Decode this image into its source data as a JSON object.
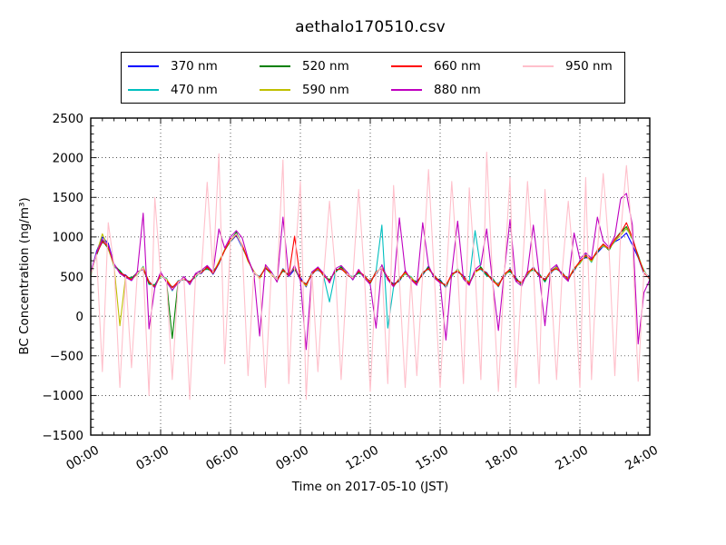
{
  "chart_data": {
    "type": "line",
    "title": "aethalo170510.csv",
    "xlabel": "Time on 2017-05-10 (JST)",
    "ylabel": "BC Concentration (ng/m³)",
    "xlim": [
      0,
      24
    ],
    "ylim": [
      -1500,
      2500
    ],
    "grid": "dotted",
    "legend": {
      "position": "top",
      "columns": 4
    },
    "xticks": {
      "values": [
        0,
        3,
        6,
        9,
        12,
        15,
        18,
        21,
        24
      ],
      "labels": [
        "00:00",
        "03:00",
        "06:00",
        "09:00",
        "12:00",
        "15:00",
        "18:00",
        "21:00",
        "24:00"
      ]
    },
    "yticks": {
      "values": [
        -1500,
        -1000,
        -500,
        0,
        500,
        1000,
        1500,
        2000,
        2500
      ],
      "labels": [
        "−1500",
        "−1000",
        "−500",
        "0",
        "500",
        "1000",
        "1500",
        "2000",
        "2500"
      ]
    },
    "minor_x_step": 0.5,
    "minor_y_step": 100,
    "x_start": 0,
    "x_step": 0.25,
    "series": [
      {
        "name": "370 nm",
        "color": "#0000ff",
        "values": [
          540,
          820,
          1000,
          920,
          660,
          540,
          520,
          450,
          560,
          590,
          440,
          360,
          540,
          440,
          370,
          410,
          500,
          400,
          530,
          540,
          630,
          530,
          660,
          840,
          940,
          1020,
          870,
          720,
          540,
          500,
          600,
          560,
          440,
          600,
          500,
          590,
          490,
          370,
          560,
          580,
          540,
          430,
          590,
          590,
          560,
          460,
          580,
          480,
          450,
          530,
          640,
          460,
          410,
          440,
          570,
          460,
          440,
          520,
          630,
          480,
          460,
          360,
          540,
          560,
          510,
          400,
          580,
          590,
          550,
          440,
          410,
          500,
          600,
          450,
          430,
          520,
          620,
          500,
          470,
          540,
          630,
          510,
          490,
          570,
          700,
          740,
          720,
          800,
          880,
          860,
          940,
          980,
          1050,
          900,
          740,
          540,
          500
        ]
      },
      {
        "name": "470 nm",
        "color": "#00bfbf",
        "values": [
          500,
          800,
          930,
          890,
          620,
          580,
          480,
          490,
          520,
          630,
          400,
          400,
          500,
          480,
          320,
          450,
          460,
          440,
          490,
          580,
          590,
          570,
          660,
          840,
          940,
          1060,
          870,
          720,
          540,
          500,
          600,
          560,
          440,
          600,
          500,
          630,
          450,
          410,
          520,
          620,
          500,
          180,
          550,
          630,
          520,
          500,
          540,
          520,
          410,
          570,
          1150,
          -150,
          370,
          480,
          530,
          500,
          400,
          560,
          590,
          520,
          420,
          400,
          500,
          600,
          470,
          440,
          1080,
          590,
          510,
          480,
          370,
          540,
          560,
          490,
          390,
          560,
          580,
          540,
          430,
          580,
          590,
          550,
          450,
          610,
          660,
          780,
          680,
          840,
          880,
          860,
          940,
          1060,
          1100,
          1000,
          740,
          580,
          460
        ]
      },
      {
        "name": "520 nm",
        "color": "#008000",
        "values": [
          530,
          770,
          960,
          850,
          650,
          570,
          490,
          480,
          550,
          600,
          410,
          390,
          530,
          450,
          -280,
          440,
          470,
          430,
          500,
          570,
          600,
          560,
          670,
          830,
          950,
          1060,
          880,
          710,
          550,
          490,
          610,
          530,
          470,
          570,
          530,
          600,
          460,
          400,
          530,
          610,
          510,
          460,
          560,
          620,
          530,
          490,
          550,
          510,
          420,
          560,
          610,
          470,
          400,
          450,
          560,
          470,
          430,
          530,
          620,
          490,
          450,
          370,
          530,
          570,
          500,
          410,
          550,
          620,
          520,
          470,
          380,
          530,
          570,
          480,
          400,
          550,
          590,
          530,
          440,
          570,
          620,
          520,
          480,
          580,
          690,
          750,
          710,
          810,
          910,
          830,
          970,
          1060,
          1130,
          970,
          770,
          550,
          490
        ]
      },
      {
        "name": "590 nm",
        "color": "#bfbf00",
        "values": [
          510,
          790,
          1040,
          860,
          630,
          -120,
          510,
          460,
          530,
          620,
          430,
          370,
          510,
          470,
          360,
          420,
          490,
          410,
          520,
          550,
          620,
          540,
          690,
          840,
          950,
          1030,
          900,
          690,
          570,
          470,
          630,
          530,
          450,
          590,
          510,
          620,
          460,
          380,
          550,
          590,
          530,
          440,
          580,
          600,
          550,
          470,
          570,
          490,
          440,
          540,
          630,
          470,
          380,
          470,
          540,
          490,
          410,
          550,
          600,
          510,
          430,
          390,
          510,
          590,
          480,
          430,
          550,
          600,
          540,
          450,
          400,
          510,
          590,
          460,
          420,
          530,
          610,
          510,
          460,
          550,
          620,
          520,
          480,
          600,
          670,
          770,
          690,
          830,
          890,
          850,
          950,
          1020,
          1110,
          990,
          750,
          570,
          470
        ]
      },
      {
        "name": "660 nm",
        "color": "#ff0000",
        "values": [
          530,
          790,
          940,
          880,
          650,
          550,
          510,
          460,
          550,
          600,
          430,
          370,
          530,
          450,
          360,
          440,
          470,
          430,
          520,
          550,
          620,
          540,
          670,
          830,
          970,
          1030,
          900,
          710,
          550,
          490,
          610,
          550,
          450,
          590,
          510,
          1010,
          460,
          400,
          530,
          610,
          510,
          440,
          580,
          600,
          530,
          470,
          570,
          510,
          420,
          560,
          610,
          490,
          380,
          470,
          560,
          470,
          410,
          550,
          600,
          510,
          430,
          390,
          530,
          570,
          500,
          410,
          570,
          600,
          540,
          450,
          380,
          530,
          590,
          460,
          420,
          550,
          610,
          510,
          460,
          570,
          600,
          540,
          460,
          600,
          690,
          770,
          710,
          830,
          910,
          850,
          970,
          1050,
          1180,
          990,
          750,
          550,
          470
        ]
      },
      {
        "name": "880 nm",
        "color": "#bf00bf",
        "values": [
          550,
          800,
          970,
          900,
          660,
          540,
          490,
          450,
          560,
          1300,
          -160,
          360,
          560,
          430,
          330,
          420,
          500,
          400,
          540,
          580,
          640,
          560,
          1100,
          860,
          1000,
          1080,
          990,
          730,
          540,
          -250,
          650,
          560,
          430,
          1250,
          500,
          640,
          450,
          -420,
          560,
          620,
          540,
          420,
          600,
          640,
          560,
          460,
          590,
          480,
          400,
          -150,
          650,
          460,
          370,
          1240,
          580,
          460,
          390,
          1180,
          640,
          480,
          420,
          -300,
          550,
          1200,
          470,
          390,
          590,
          650,
          1100,
          430,
          -180,
          550,
          1220,
          440,
          380,
          570,
          1150,
          540,
          -120,
          590,
          650,
          510,
          440,
          1050,
          720,
          800,
          730,
          1250,
          950,
          870,
          1010,
          1480,
          1550,
          1150,
          -350,
          300,
          460
        ]
      },
      {
        "name": "950 nm",
        "color": "#ffc0cb",
        "values": [
          520,
          780,
          -700,
          1180,
          640,
          -900,
          500,
          -650,
          540,
          610,
          -1000,
          1500,
          520,
          460,
          -800,
          430,
          480,
          -1050,
          510,
          560,
          1690,
          550,
          2050,
          -600,
          960,
          1040,
          890,
          -750,
          560,
          480,
          -900,
          540,
          460,
          1970,
          -850,
          610,
          1700,
          -1050,
          540,
          -700,
          520,
          1450,
          570,
          -800,
          540,
          480,
          1600,
          500,
          -950,
          550,
          620,
          -850,
          1650,
          460,
          -900,
          480,
          -750,
          540,
          1850,
          500,
          -900,
          380,
          1700,
          580,
          -850,
          1620,
          560,
          -800,
          2070,
          460,
          -950,
          520,
          1750,
          -900,
          410,
          1700,
          600,
          -850,
          1600,
          450,
          -800,
          610,
          1450,
          590,
          -900,
          1750,
          -800,
          820,
          1800,
          840,
          -750,
          1040,
          1900,
          980,
          -820,
          560,
          480
        ]
      }
    ]
  }
}
